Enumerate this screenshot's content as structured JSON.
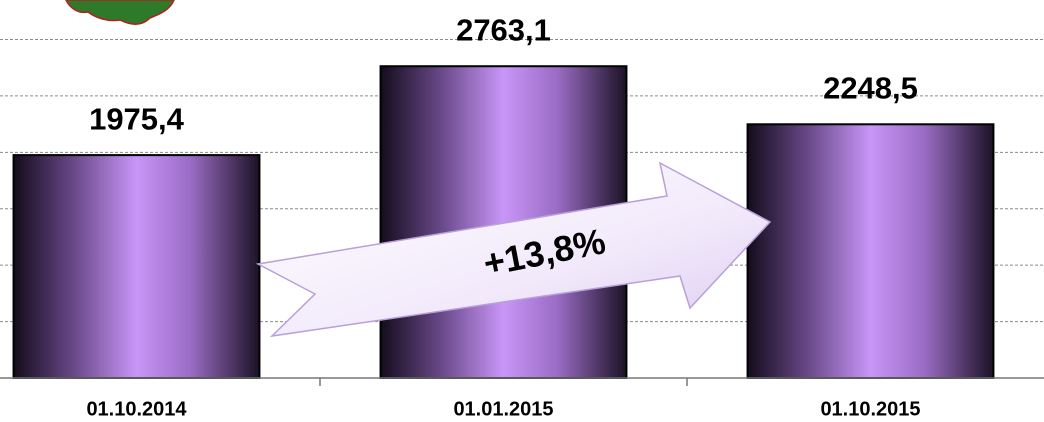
{
  "chart_data": {
    "type": "bar",
    "categories": [
      "01.10.2014",
      "01.01.2015",
      "01.10.2015"
    ],
    "values": [
      1975.4,
      2763.1,
      2248.5
    ],
    "value_labels": [
      "1975,4",
      "2763,1",
      "2248,5"
    ],
    "annotation": "+13,8%",
    "color": "#c896f8",
    "ylim": [
      0,
      3350
    ],
    "yticks": [
      0,
      500,
      1000,
      1500,
      2000,
      2500,
      3000
    ],
    "grid": true
  }
}
